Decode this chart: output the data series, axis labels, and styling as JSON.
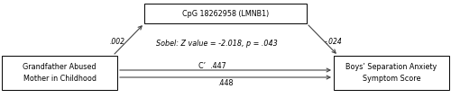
{
  "left_box_text": "Grandfather Abused\nMother in Childhood",
  "right_box_text": "Boys’ Separation Anxiety\nSymptom Score",
  "top_box_text": "CpG 18262958 (LMNB1)",
  "sobel_text": "Sobel: Z value = -2.018, p = .043",
  "label_left_arrow": ".002",
  "label_right_arrow": "-.024",
  "label_direct_top": "C’  .447",
  "label_direct_bottom": ".448",
  "box_color": "#ffffff",
  "box_edgecolor": "#000000",
  "arrow_color": "#444444",
  "text_color": "#000000",
  "bg_color": "#ffffff",
  "fig_width": 5.0,
  "fig_height": 1.09
}
